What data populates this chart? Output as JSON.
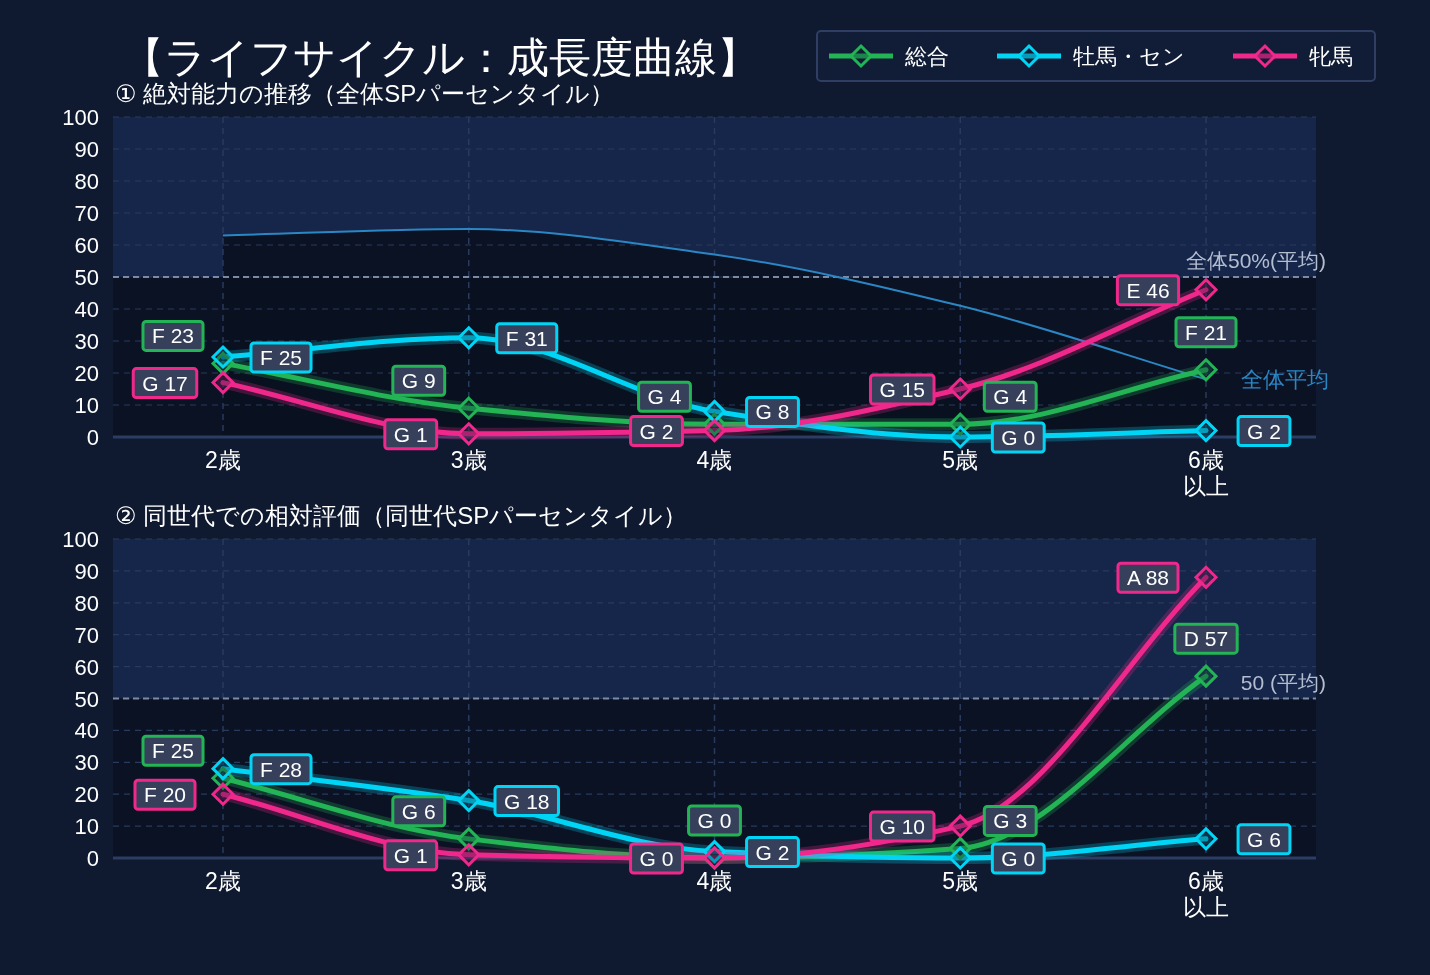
{
  "chart_data": [
    {
      "type": "line",
      "title": "【ライフサイクル：成長度曲線】",
      "subtitle": "① 絶対能力の推移（全体SPパーセンタイル）",
      "categories": [
        "2歳",
        "3歳",
        "4歳",
        "5歳",
        "6歳以上"
      ],
      "series": [
        {
          "name": "全体平均",
          "type": "area",
          "marker": "none",
          "color": "#2b86c4",
          "values": [
            63,
            65,
            57,
            41,
            18
          ]
        },
        {
          "name": "総合",
          "color": "#22b455",
          "values": [
            23,
            9,
            4,
            4,
            21
          ],
          "value_labels": [
            "F 23",
            "G 9",
            "G 4",
            "G 4",
            "F 21"
          ]
        },
        {
          "name": "牡馬・セン",
          "color": "#00d5f5",
          "values": [
            25,
            31,
            8,
            0,
            2
          ],
          "value_labels": [
            "F 25",
            "F 31",
            "G 8",
            "G 0",
            "G 2"
          ]
        },
        {
          "name": "牝馬",
          "color": "#f0288c",
          "values": [
            17,
            1,
            2,
            15,
            46
          ],
          "value_labels": [
            "G 17",
            "G 1",
            "G 2",
            "G 15",
            "E 46"
          ]
        }
      ],
      "ylim": [
        0,
        100
      ],
      "yticks": [
        0,
        10,
        20,
        30,
        40,
        50,
        60,
        70,
        80,
        90,
        100
      ],
      "grid": true,
      "marker": "diamond",
      "legend": "top right",
      "ref_lines": [
        {
          "axis": "y",
          "value": 50,
          "label": "全体50%(平均)",
          "line_style": "dashed",
          "color": "#7d8aa3"
        }
      ],
      "bands": [
        {
          "axis": "y",
          "from": 50,
          "to": 100,
          "color": "#15264a"
        }
      ]
    },
    {
      "type": "line",
      "subtitle": "② 同世代での相対評価（同世代SPパーセンタイル）",
      "categories": [
        "2歳",
        "3歳",
        "4歳",
        "5歳",
        "6歳以上"
      ],
      "series": [
        {
          "color": "#22b455",
          "values": [
            25,
            6,
            0,
            3,
            57
          ],
          "value_labels": [
            "F 25",
            "G 6",
            "G 0",
            "G 3",
            "D 57"
          ]
        },
        {
          "color": "#00d5f5",
          "values": [
            28,
            18,
            2,
            0,
            6
          ],
          "value_labels": [
            "F 28",
            "G 18",
            "G 2",
            "G 0",
            "G 6"
          ]
        },
        {
          "color": "#f0288c",
          "values": [
            20,
            1,
            0,
            10,
            88
          ],
          "value_labels": [
            "F 20",
            "G 1",
            "G 0",
            "G 10",
            "A 88"
          ]
        }
      ],
      "ylim": [
        0,
        100
      ],
      "yticks": [
        0,
        10,
        20,
        30,
        40,
        50,
        60,
        70,
        80,
        90,
        100
      ],
      "grid": true,
      "marker": "diamond",
      "ref_lines": [
        {
          "axis": "y",
          "value": 50,
          "label": "50 (平均)",
          "line_style": "dashed",
          "color": "#7d8aa3"
        }
      ],
      "bands": [
        {
          "axis": "y",
          "from": 50,
          "to": 100,
          "color": "#15264a"
        }
      ]
    }
  ]
}
